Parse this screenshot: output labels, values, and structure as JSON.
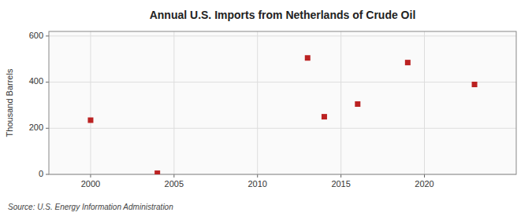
{
  "chart_data": {
    "type": "scatter",
    "title": "Annual U.S. Imports from Netherlands of Crude Oil",
    "ylabel": "Thousand Barrels",
    "annotations": [
      "Source: U.S. Energy Information Administration"
    ],
    "x": [
      2000,
      2004,
      2013,
      2014,
      2016,
      2019,
      2023
    ],
    "values": [
      235,
      5,
      505,
      250,
      305,
      485,
      390
    ],
    "color": "#bb2222",
    "marker": "square",
    "xlim": [
      1997.5,
      2025.5
    ],
    "ylim": [
      0,
      620
    ],
    "xticks": [
      2000,
      2005,
      2010,
      2015,
      2020
    ],
    "yticks": [
      0,
      200,
      400,
      600
    ],
    "grid": true
  }
}
